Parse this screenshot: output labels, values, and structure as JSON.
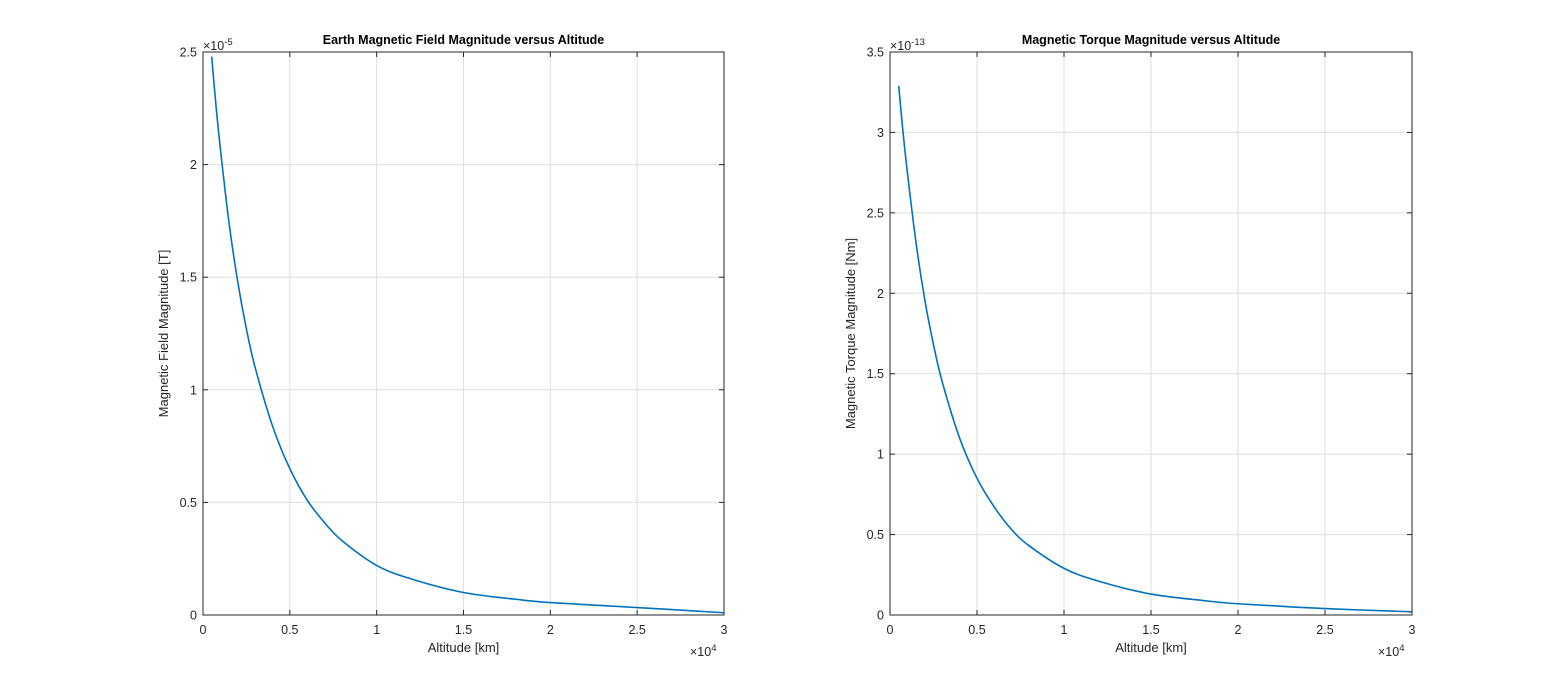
{
  "chart_data": [
    {
      "type": "line",
      "title": "Earth Magnetic Field Magnitude versus Altitude",
      "xlabel": "Altitude [km]",
      "ylabel": "Magnetic Field Magnitude [T]",
      "xlim": [
        0,
        30000
      ],
      "ylim": [
        0,
        2.5e-05
      ],
      "x_exponent_label": "×10",
      "x_exponent": "4",
      "y_exponent_label": "×10",
      "y_exponent": "-5",
      "xticks": [
        0,
        0.5,
        1,
        1.5,
        2,
        2.5,
        3
      ],
      "xtick_labels": [
        "0",
        "0.5",
        "1",
        "1.5",
        "2",
        "2.5",
        "3"
      ],
      "yticks": [
        0,
        0.5,
        1,
        1.5,
        2,
        2.5
      ],
      "ytick_labels": [
        "0",
        "0.5",
        "1",
        "1.5",
        "2",
        "2.5"
      ],
      "grid": true,
      "series_color": "#0072bd",
      "series": [
        {
          "x": [
            500,
            750,
            1000,
            1500,
            2000,
            2500,
            3000,
            4000,
            5000,
            6000,
            7000,
            8000,
            10000,
            12000,
            15000,
            18000,
            20000,
            25000,
            30000
          ],
          "y": [
            2.48e-05,
            2.26e-05,
            2.07e-05,
            1.74e-05,
            1.48e-05,
            1.27e-05,
            1.1e-05,
            8.4e-06,
            6.5e-06,
            5.1e-06,
            4.1e-06,
            3.3e-06,
            2.2e-06,
            1.6e-06,
            1e-06,
            7e-07,
            5.5e-07,
            3.3e-07,
            1e-07
          ]
        }
      ]
    },
    {
      "type": "line",
      "title": "Magnetic Torque Magnitude versus Altitude",
      "xlabel": "Altitude [km]",
      "ylabel": "Magnetic Torque Magnitude [Nm]",
      "xlim": [
        0,
        30000
      ],
      "ylim": [
        0,
        3.5e-13
      ],
      "x_exponent_label": "×10",
      "x_exponent": "4",
      "y_exponent_label": "×10",
      "y_exponent": "-13",
      "xticks": [
        0,
        0.5,
        1,
        1.5,
        2,
        2.5,
        3
      ],
      "xtick_labels": [
        "0",
        "0.5",
        "1",
        "1.5",
        "2",
        "2.5",
        "3"
      ],
      "yticks": [
        0,
        0.5,
        1,
        1.5,
        2,
        2.5,
        3,
        3.5
      ],
      "ytick_labels": [
        "0",
        "0.5",
        "1",
        "1.5",
        "2",
        "2.5",
        "3",
        "3.5"
      ],
      "grid": true,
      "series_color": "#0072bd",
      "series": [
        {
          "x": [
            500,
            750,
            1000,
            1500,
            2000,
            2500,
            3000,
            4000,
            5000,
            6000,
            7000,
            8000,
            10000,
            12000,
            15000,
            18000,
            20000,
            25000,
            30000
          ],
          "y": [
            3.29e-13,
            3e-13,
            2.75e-13,
            2.31e-13,
            1.96e-13,
            1.68e-13,
            1.45e-13,
            1.1e-13,
            8.5e-14,
            6.7e-14,
            5.3e-14,
            4.3e-14,
            2.9e-14,
            2.1e-14,
            1.3e-14,
            9e-15,
            7e-15,
            4e-15,
            2e-15
          ]
        }
      ]
    }
  ]
}
